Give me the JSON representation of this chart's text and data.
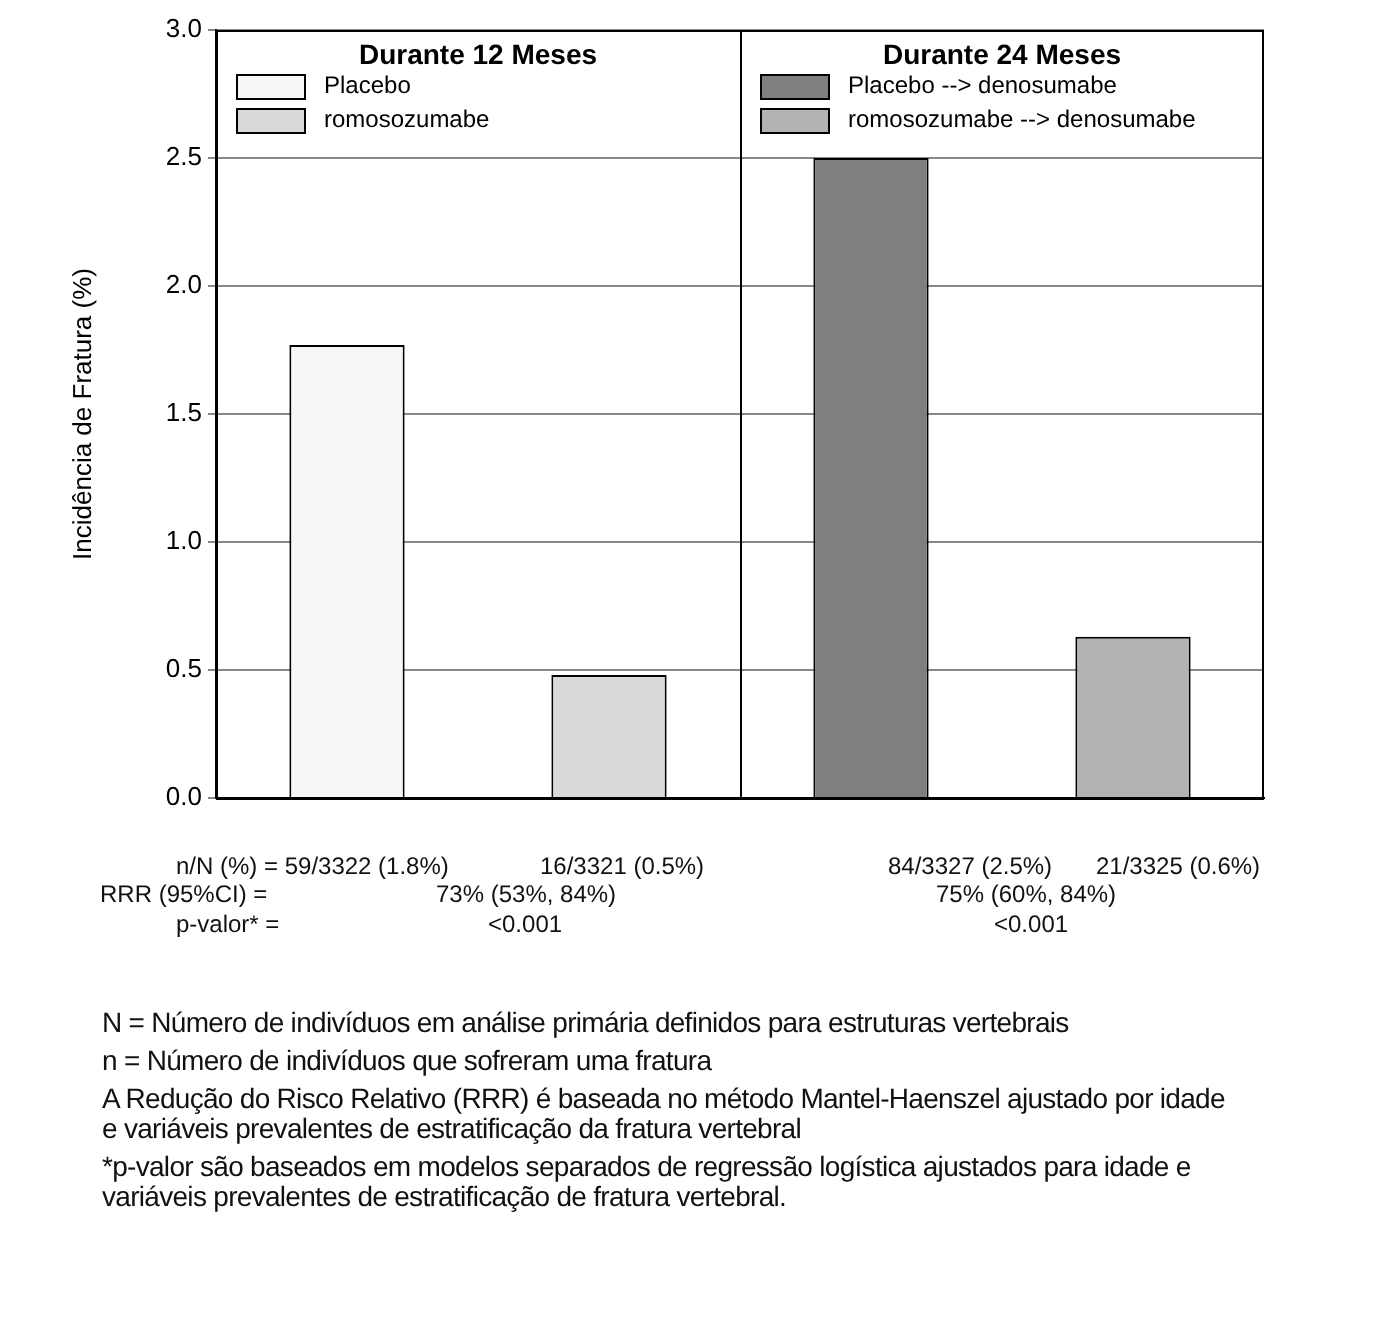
{
  "chart_data": {
    "type": "bar",
    "ylabel": "Incidência de Fratura (%)",
    "categories": [
      null,
      null,
      null,
      null
    ],
    "series": [
      {
        "name": "Placebo",
        "color": "#f7f7f7",
        "values": [
          1.77,
          null,
          null,
          null
        ]
      },
      {
        "name": "romosozumabe",
        "color": "#d9d9d9",
        "values": [
          null,
          0.48,
          null,
          null
        ]
      },
      {
        "name": "Placebo --> denosumabe",
        "color": "#7f7f7f",
        "values": [
          null,
          null,
          2.5,
          null
        ]
      },
      {
        "name": "romosozumabe --> denosumabe",
        "color": "#b3b3b3",
        "values": [
          null,
          null,
          null,
          0.63
        ]
      }
    ],
    "ylim": [
      0,
      3
    ],
    "yticks": [
      {
        "value": 0,
        "label": "0.0"
      },
      {
        "value": 0.5,
        "label": "0.5"
      },
      {
        "value": 1,
        "label": "1.0"
      },
      {
        "value": 1.5,
        "label": "1.5"
      },
      {
        "value": 2,
        "label": "2.0"
      },
      {
        "value": 2.5,
        "label": "2.5"
      },
      {
        "value": 3,
        "label": "3.0"
      }
    ],
    "grid": "y",
    "legend": "top left",
    "annotations": [
      "Durante 12 Meses",
      "Durante 24 Meses",
      "n/N  (%)  = 59/3322  (1.8%)",
      "16/3321  (0.5%)",
      "84/3327  (2.5%)",
      "21/3325  (0.6%)",
      "RRR   (95%CI)  =",
      "73% (53%,  84%)",
      "75% (60%,  84%)",
      "p-valor* =",
      "<0.001",
      "<0.001",
      "N = Número de indivíduos em análise primária definidos para estruturas vertebrais",
      "n = Número de indivíduos que sofreram uma fratura",
      "A Redução do Risco Relativo (RRR) é baseada no método Mantel-Haenszel ajustado por idade",
      "e variáveis prevalentes de estratificação da fratura vertebral",
      "*p-valor são baseados em modelos separados de regressão logística ajustados para idade e",
      "variáveis prevalentes de estratificação de fratura vertebral."
    ]
  }
}
